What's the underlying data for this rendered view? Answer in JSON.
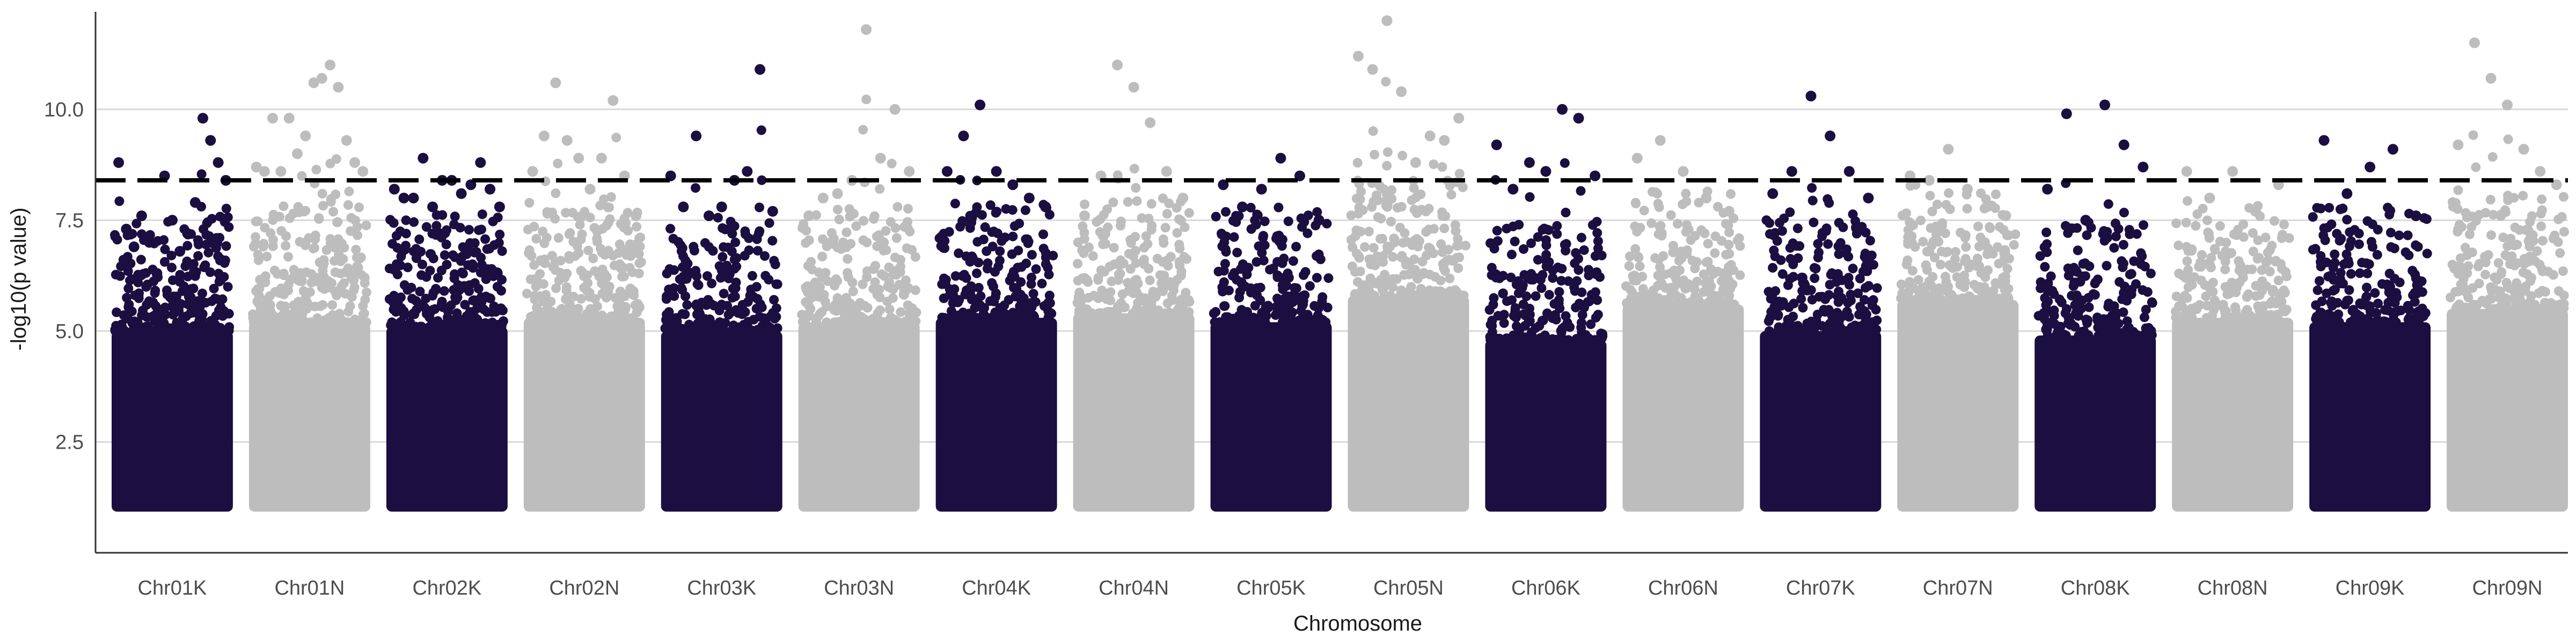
{
  "chart_data": {
    "type": "scatter",
    "title": "",
    "xlabel": "Chromosome",
    "ylabel": "-log10(p value)",
    "ylim": [
      0.0,
      12.2
    ],
    "yticks": [
      2.5,
      5.0,
      7.5,
      10.0
    ],
    "ytick_labels": [
      "2.5",
      "5.0",
      "7.5",
      "10.0"
    ],
    "gridlines": "horizontal",
    "threshold": 8.4,
    "threshold_style": "dashed",
    "colors": {
      "dark": "#1b0e40",
      "light": "#bdbdbd",
      "threshold": "#000000",
      "grid": "#d9d9d9",
      "axis": "#333333"
    },
    "categories": [
      "Chr01K",
      "Chr01N",
      "Chr02K",
      "Chr02N",
      "Chr03K",
      "Chr03N",
      "Chr04K",
      "Chr04N",
      "Chr05K",
      "Chr05N",
      "Chr06K",
      "Chr06N",
      "Chr07K",
      "Chr07N",
      "Chr08K",
      "Chr08N",
      "Chr09K",
      "Chr09N"
    ],
    "category_colors": [
      "dark",
      "light",
      "dark",
      "light",
      "dark",
      "light",
      "dark",
      "light",
      "dark",
      "light",
      "dark",
      "light",
      "dark",
      "light",
      "dark",
      "light",
      "dark",
      "light"
    ],
    "baseline": 1.0,
    "series": [
      {
        "category": "Chr01K",
        "solid_top": 5.0,
        "peaks": [
          8.8,
          7.3,
          6.9,
          7.6,
          7.0,
          6.3,
          8.5,
          7.5,
          6.8,
          7.2,
          7.9,
          9.8,
          9.3,
          8.8,
          8.4
        ]
      },
      {
        "category": "Chr01N",
        "solid_top": 5.2,
        "peaks": [
          8.7,
          8.6,
          9.8,
          8.6,
          9.8,
          9.0,
          9.4,
          10.6,
          10.7,
          11.0,
          10.5,
          9.3,
          8.8,
          8.6
        ]
      },
      {
        "category": "Chr02K",
        "solid_top": 5.1,
        "peaks": [
          8.2,
          8.0,
          8.0,
          8.9,
          7.8,
          8.4,
          8.4,
          8.1,
          8.3,
          8.8,
          8.2,
          7.8
        ]
      },
      {
        "category": "Chr02N",
        "solid_top": 5.3,
        "peaks": [
          8.6,
          9.4,
          10.6,
          9.3,
          8.9,
          8.2,
          8.9,
          10.2,
          8.5,
          7.6
        ]
      },
      {
        "category": "Chr03K",
        "solid_top": 5.0,
        "peaks": [
          8.5,
          7.8,
          9.4,
          7.6,
          7.8,
          8.4,
          8.6,
          10.9,
          7.7
        ]
      },
      {
        "category": "Chr03N",
        "solid_top": 5.2,
        "peaks": [
          7.6,
          8.0,
          8.1,
          8.4,
          11.8,
          8.9,
          10.0,
          8.6
        ]
      },
      {
        "category": "Chr04K",
        "solid_top": 5.3,
        "peaks": [
          8.6,
          9.4,
          10.1,
          8.6,
          8.3,
          8.0,
          7.8
        ]
      },
      {
        "category": "Chr04N",
        "solid_top": 5.4,
        "peaks": [
          7.6,
          8.5,
          11.0,
          10.5,
          9.7,
          8.6,
          8.0
        ]
      },
      {
        "category": "Chr05K",
        "solid_top": 5.2,
        "peaks": [
          8.3,
          7.8,
          8.2,
          8.9,
          8.5,
          7.5
        ]
      },
      {
        "category": "Chr05N",
        "solid_top": 5.8,
        "peaks": [
          11.2,
          10.9,
          12.0,
          10.4,
          8.8,
          9.4,
          9.3,
          9.8
        ]
      },
      {
        "category": "Chr06K",
        "solid_top": 4.8,
        "peaks": [
          9.2,
          8.2,
          8.8,
          8.6,
          10.0,
          9.8,
          8.5
        ]
      },
      {
        "category": "Chr06N",
        "solid_top": 5.6,
        "peaks": [
          8.9,
          9.3,
          8.6,
          8.0,
          7.7
        ]
      },
      {
        "category": "Chr07K",
        "solid_top": 5.0,
        "peaks": [
          8.1,
          8.6,
          10.3,
          9.4,
          8.6,
          8.0
        ]
      },
      {
        "category": "Chr07N",
        "solid_top": 5.7,
        "peaks": [
          8.5,
          8.4,
          9.1,
          8.2,
          7.8,
          7.6
        ]
      },
      {
        "category": "Chr08K",
        "solid_top": 4.9,
        "peaks": [
          8.2,
          9.9,
          7.5,
          10.1,
          9.2,
          8.7
        ]
      },
      {
        "category": "Chr08N",
        "solid_top": 5.3,
        "peaks": [
          8.6,
          8.0,
          8.6,
          7.7,
          8.3
        ]
      },
      {
        "category": "Chr09K",
        "solid_top": 5.2,
        "peaks": [
          9.3,
          8.1,
          8.7,
          9.1,
          7.6
        ]
      },
      {
        "category": "Chr09N",
        "solid_top": 5.5,
        "peaks": [
          9.2,
          11.5,
          10.7,
          10.1,
          9.1,
          8.6,
          8.3
        ]
      }
    ]
  }
}
